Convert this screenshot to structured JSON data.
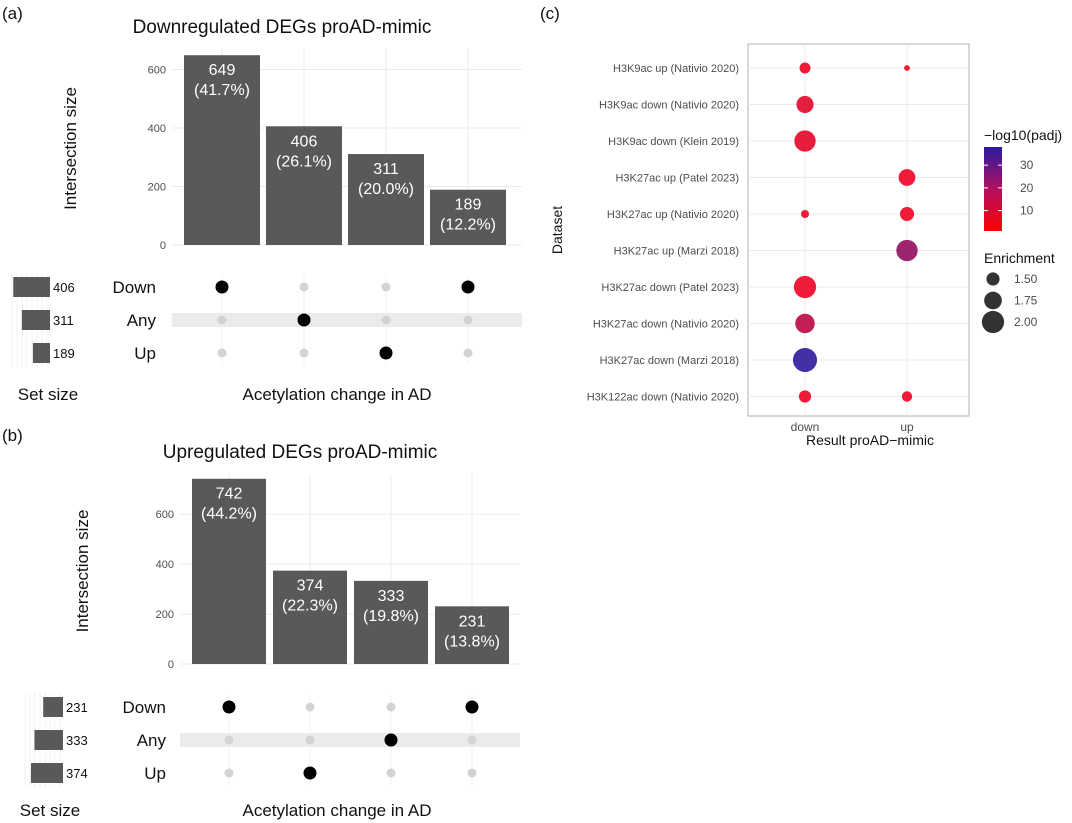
{
  "figure": {
    "panel_a": "(a)",
    "panel_b": "(b)",
    "panel_c": "(c)"
  },
  "chart_data": [
    {
      "type": "bar",
      "subtype": "upset",
      "title": "Downregulated DEGs proAD-mimic",
      "ylabel": "Intersection size",
      "xlabel": "Acetylation change in AD",
      "ylim": [
        0,
        660
      ],
      "yticks": [
        "0",
        "200",
        "400",
        "600"
      ],
      "values": [
        649,
        406,
        311,
        189
      ],
      "value_labels": [
        "649",
        "406",
        "311",
        "189"
      ],
      "percent_labels": [
        "(41.7%)",
        "(26.1%)",
        "(20.0%)",
        "(12.2%)"
      ],
      "sets": [
        "Down",
        "Any",
        "Up"
      ],
      "set_sizes": [
        406,
        311,
        189
      ],
      "set_size_labels": [
        "406",
        "311",
        "189"
      ],
      "set_size_label": "Set size",
      "active_set_per_bar": [
        0,
        1,
        2,
        0
      ],
      "has_member": [
        0,
        1,
        1,
        1
      ]
    },
    {
      "type": "bar",
      "subtype": "upset",
      "title": "Upregulated DEGs proAD-mimic",
      "ylabel": "Intersection size",
      "xlabel": "Acetylation change in AD",
      "ylim": [
        0,
        745
      ],
      "yticks": [
        "0",
        "200",
        "400",
        "600"
      ],
      "values": [
        742,
        374,
        333,
        231
      ],
      "value_labels": [
        "742",
        "374",
        "333",
        "231"
      ],
      "percent_labels": [
        "(44.2%)",
        "(22.3%)",
        "(19.8%)",
        "(13.8%)"
      ],
      "sets": [
        "Down",
        "Any",
        "Up"
      ],
      "set_sizes": [
        231,
        333,
        374
      ],
      "set_size_labels": [
        "231",
        "333",
        "374"
      ],
      "set_size_label": "Set size",
      "active_set_per_bar": [
        0,
        2,
        1,
        0
      ],
      "has_member": [
        0,
        1,
        1,
        1
      ]
    },
    {
      "type": "scatter",
      "subtype": "dotplot",
      "ylabel": "Dataset",
      "xlabel": "Result proAD−mimic",
      "x_categories": [
        "down",
        "up"
      ],
      "y_categories": [
        "H3K9ac up (Nativio 2020)",
        "H3K9ac down (Nativio 2020)",
        "H3K9ac down (Klein 2019)",
        "H3K27ac up (Patel 2023)",
        "H3K27ac up (Nativio 2020)",
        "H3K27ac up (Marzi 2018)",
        "H3K27ac down (Patel 2023)",
        "H3K27ac down (Nativio 2020)",
        "H3K27ac down (Marzi 2018)",
        "H3K122ac down (Nativio 2020)"
      ],
      "points": [
        {
          "x": "down",
          "y": "H3K9ac up (Nativio 2020)",
          "enrichment": 1.38,
          "neg_log10_padj": 4
        },
        {
          "x": "up",
          "y": "H3K9ac up (Nativio 2020)",
          "enrichment": 1.1,
          "neg_log10_padj": 1
        },
        {
          "x": "down",
          "y": "H3K9ac down (Nativio 2020)",
          "enrichment": 1.72,
          "neg_log10_padj": 6
        },
        {
          "x": "down",
          "y": "H3K9ac down (Klein 2019)",
          "enrichment": 1.95,
          "neg_log10_padj": 5
        },
        {
          "x": "up",
          "y": "H3K27ac up (Patel 2023)",
          "enrichment": 1.7,
          "neg_log10_padj": 4
        },
        {
          "x": "down",
          "y": "H3K27ac up (Nativio 2020)",
          "enrichment": 1.22,
          "neg_log10_padj": 4
        },
        {
          "x": "up",
          "y": "H3K27ac up (Nativio 2020)",
          "enrichment": 1.55,
          "neg_log10_padj": 4
        },
        {
          "x": "up",
          "y": "H3K27ac up (Marzi 2018)",
          "enrichment": 1.95,
          "neg_log10_padj": 20
        },
        {
          "x": "down",
          "y": "H3K27ac down (Patel 2023)",
          "enrichment": 2.0,
          "neg_log10_padj": 4
        },
        {
          "x": "down",
          "y": "H3K27ac down (Nativio 2020)",
          "enrichment": 1.85,
          "neg_log10_padj": 13
        },
        {
          "x": "down",
          "y": "H3K27ac down (Marzi 2018)",
          "enrichment": 2.1,
          "neg_log10_padj": 37
        },
        {
          "x": "down",
          "y": "H3K122ac down (Nativio 2020)",
          "enrichment": 1.45,
          "neg_log10_padj": 4
        },
        {
          "x": "up",
          "y": "H3K122ac down (Nativio 2020)",
          "enrichment": 1.35,
          "neg_log10_padj": 4
        }
      ],
      "color_legend": {
        "title": "−log10(padj)",
        "ticks": [
          "10",
          "20",
          "30"
        ],
        "tick_values": [
          10,
          20,
          30
        ],
        "range": [
          1,
          38
        ],
        "low_color": "#ff0000",
        "high_color": "#2a1a9e"
      },
      "size_legend": {
        "title": "Enrichment",
        "labels": [
          "1.50",
          "1.75",
          "2.00"
        ],
        "values": [
          1.5,
          1.75,
          2.0
        ]
      },
      "enrichment_range": [
        1.0,
        2.15
      ]
    }
  ]
}
